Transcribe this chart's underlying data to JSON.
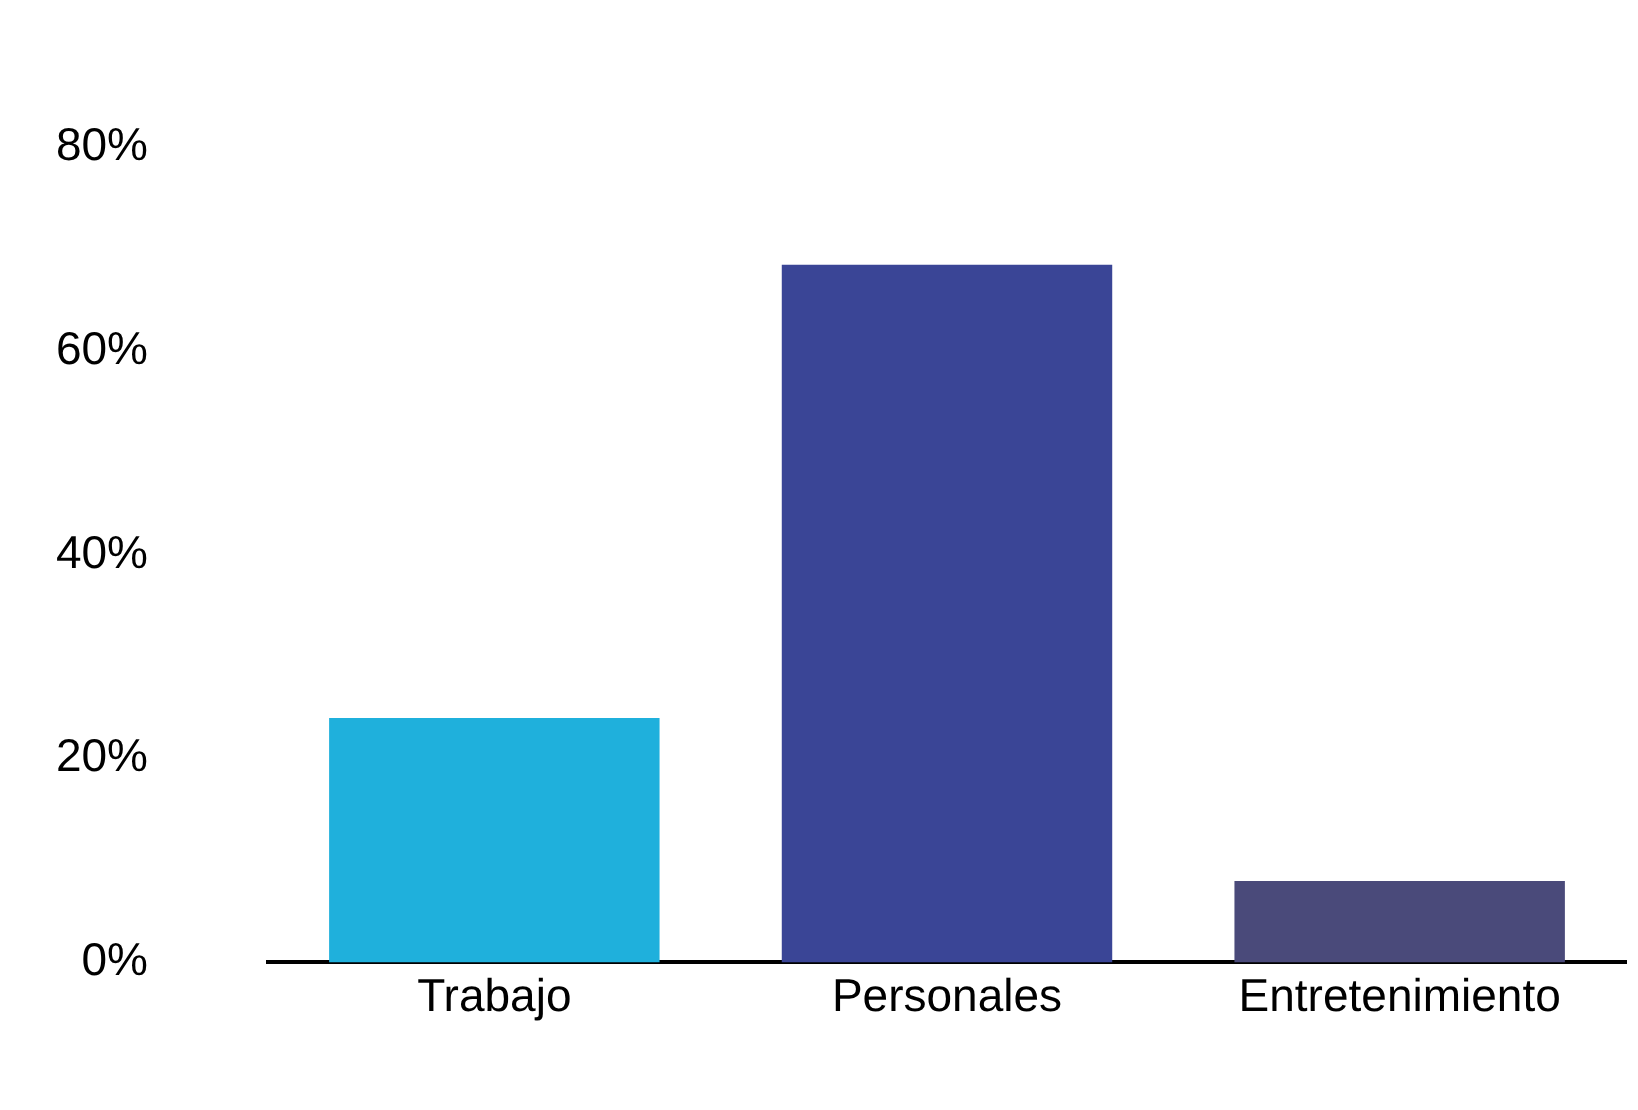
{
  "chart_data": {
    "type": "bar",
    "categories": [
      "Trabajo",
      "Personales",
      "Entretenimiento"
    ],
    "values": [
      24,
      68.5,
      8
    ],
    "colors": [
      "#1fb0dc",
      "#3a4596",
      "#4a4a7a"
    ],
    "ylim": [
      0,
      80
    ],
    "yticks": [
      {
        "value": 0,
        "label": "0%"
      },
      {
        "value": 20,
        "label": "20%"
      },
      {
        "value": 40,
        "label": "40%"
      },
      {
        "value": 60,
        "label": "60%"
      },
      {
        "value": 80,
        "label": "80%"
      }
    ],
    "grid": false,
    "legend": false
  }
}
